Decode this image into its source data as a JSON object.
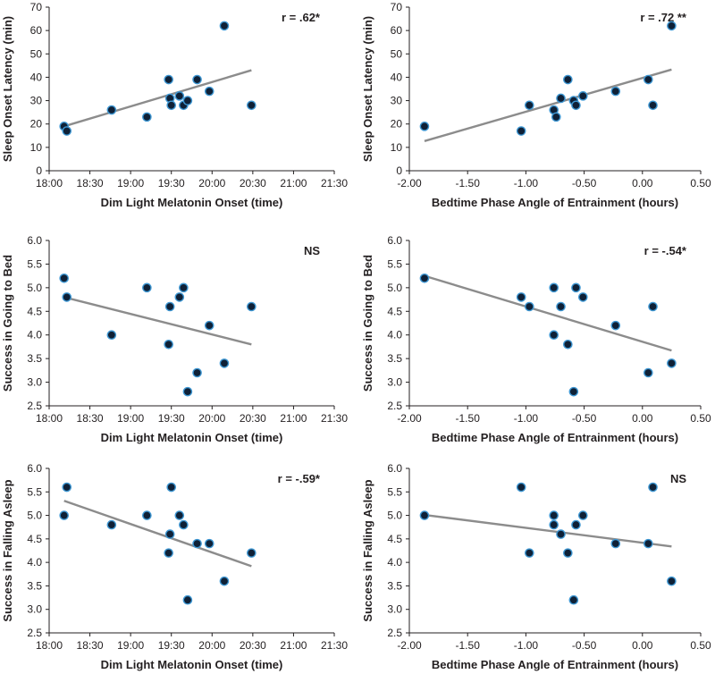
{
  "chart_data": [
    {
      "type": "scatter",
      "id": "p1",
      "xlabel": "Dim Light Melatonin Onset (time)",
      "ylabel": "Sleep Onset Latency (min)",
      "annotation": "r = .62*",
      "x_ticks": [
        "18:00",
        "18:30",
        "19:00",
        "19:30",
        "20:00",
        "20:30",
        "21:00",
        "21:30"
      ],
      "y_ticks": [
        "0",
        "10",
        "20",
        "30",
        "40",
        "50",
        "60",
        "70"
      ],
      "xlim": [
        0,
        210
      ],
      "ylim": [
        0,
        70
      ],
      "x_unit": "minutes after 18:00",
      "points": [
        [
          11,
          19
        ],
        [
          13,
          17
        ],
        [
          46,
          26
        ],
        [
          72,
          23
        ],
        [
          88,
          39
        ],
        [
          89,
          31
        ],
        [
          90,
          28
        ],
        [
          96,
          32
        ],
        [
          99,
          28
        ],
        [
          102,
          30
        ],
        [
          109,
          39
        ],
        [
          118,
          34
        ],
        [
          129,
          62
        ],
        [
          149,
          28
        ]
      ],
      "trendline": [
        [
          11,
          19
        ],
        [
          149,
          43
        ]
      ]
    },
    {
      "type": "scatter",
      "id": "p2",
      "xlabel": "Bedtime Phase Angle of Entrainment (hours)",
      "ylabel": "Sleep Onset Latency (min)",
      "annotation": "r = .72 **",
      "x_ticks": [
        "-2.00",
        "-1.50",
        "-1.00",
        "-0.50",
        "0.00",
        "0.50"
      ],
      "y_ticks": [
        "0",
        "10",
        "20",
        "30",
        "40",
        "50",
        "60",
        "70"
      ],
      "xlim": [
        -2.0,
        0.5
      ],
      "ylim": [
        0,
        70
      ],
      "points": [
        [
          -1.87,
          19
        ],
        [
          -1.04,
          17
        ],
        [
          -0.97,
          28
        ],
        [
          -0.76,
          26
        ],
        [
          -0.74,
          23
        ],
        [
          -0.7,
          31
        ],
        [
          -0.64,
          39
        ],
        [
          -0.59,
          30
        ],
        [
          -0.57,
          28
        ],
        [
          -0.51,
          32
        ],
        [
          -0.23,
          34
        ],
        [
          0.05,
          39
        ],
        [
          0.09,
          28
        ],
        [
          0.25,
          62
        ]
      ],
      "trendline": [
        [
          -1.87,
          12.7
        ],
        [
          0.25,
          43.3
        ]
      ]
    },
    {
      "type": "scatter",
      "id": "p3",
      "xlabel": "Dim Light Melatonin Onset (time)",
      "ylabel": "Success in Going to Bed",
      "annotation": "NS",
      "x_ticks": [
        "18:00",
        "18:30",
        "19:00",
        "19:30",
        "20:00",
        "20:30",
        "21:00",
        "21:30"
      ],
      "y_ticks": [
        "2.5",
        "3.0",
        "3.5",
        "4.0",
        "4.5",
        "5.0",
        "5.5",
        "6.0"
      ],
      "xlim": [
        0,
        210
      ],
      "ylim": [
        2.5,
        6.0
      ],
      "x_unit": "minutes after 18:00",
      "points": [
        [
          11,
          5.2
        ],
        [
          13,
          4.8
        ],
        [
          46,
          4.0
        ],
        [
          72,
          5.0
        ],
        [
          88,
          3.8
        ],
        [
          89,
          4.6
        ],
        [
          96,
          4.8
        ],
        [
          99,
          5.0
        ],
        [
          102,
          2.8
        ],
        [
          109,
          3.2
        ],
        [
          118,
          4.2
        ],
        [
          129,
          3.4
        ],
        [
          149,
          4.6
        ]
      ],
      "trendline": [
        [
          11,
          4.8
        ],
        [
          149,
          3.8
        ]
      ]
    },
    {
      "type": "scatter",
      "id": "p4",
      "xlabel": "Bedtime Phase Angle of Entrainment (hours)",
      "ylabel": "Success in Going to Bed",
      "annotation": "r = -.54*",
      "x_ticks": [
        "-2.00",
        "-1.50",
        "-1.00",
        "-0.50",
        "0.00",
        "0.50"
      ],
      "y_ticks": [
        "2.5",
        "3.0",
        "3.5",
        "4.0",
        "4.5",
        "5.0",
        "5.5",
        "6.0"
      ],
      "xlim": [
        -2.0,
        0.5
      ],
      "ylim": [
        2.5,
        6.0
      ],
      "points": [
        [
          -1.87,
          5.2
        ],
        [
          -1.04,
          4.8
        ],
        [
          -0.97,
          4.6
        ],
        [
          -0.76,
          5.0
        ],
        [
          -0.76,
          4.0
        ],
        [
          -0.7,
          4.6
        ],
        [
          -0.64,
          3.8
        ],
        [
          -0.59,
          2.8
        ],
        [
          -0.57,
          5.0
        ],
        [
          -0.51,
          4.8
        ],
        [
          -0.23,
          4.2
        ],
        [
          0.05,
          3.2
        ],
        [
          0.09,
          4.6
        ],
        [
          0.25,
          3.4
        ]
      ],
      "trendline": [
        [
          -1.87,
          5.25
        ],
        [
          0.25,
          3.67
        ]
      ]
    },
    {
      "type": "scatter",
      "id": "p5",
      "xlabel": "Dim Light Melatonin Onset (time)",
      "ylabel": "Success in Falling Asleep",
      "annotation": "r = -.59*",
      "x_ticks": [
        "18:00",
        "18:30",
        "19:00",
        "19:30",
        "20:00",
        "20:30",
        "21:00",
        "21:30"
      ],
      "y_ticks": [
        "2.5",
        "3.0",
        "3.5",
        "4.0",
        "4.5",
        "5.0",
        "5.5",
        "6.0"
      ],
      "xlim": [
        0,
        210
      ],
      "ylim": [
        2.5,
        6.0
      ],
      "x_unit": "minutes after 18:00",
      "points": [
        [
          11,
          5.0
        ],
        [
          13,
          5.6
        ],
        [
          46,
          4.8
        ],
        [
          72,
          5.0
        ],
        [
          88,
          4.2
        ],
        [
          89,
          4.6
        ],
        [
          90,
          5.6
        ],
        [
          96,
          5.0
        ],
        [
          99,
          4.8
        ],
        [
          102,
          3.2
        ],
        [
          109,
          4.4
        ],
        [
          118,
          4.4
        ],
        [
          129,
          3.6
        ],
        [
          149,
          4.2
        ]
      ],
      "trendline": [
        [
          11,
          5.31
        ],
        [
          149,
          3.92
        ]
      ]
    },
    {
      "type": "scatter",
      "id": "p6",
      "xlabel": "Bedtime Phase Angle of Entrainment (hours)",
      "ylabel": "Success in Falling Asleep",
      "annotation": "NS",
      "x_ticks": [
        "-2.00",
        "-1.50",
        "-1.00",
        "-0.50",
        "0.00",
        "0.50"
      ],
      "y_ticks": [
        "2.5",
        "3.0",
        "3.5",
        "4.0",
        "4.5",
        "5.0",
        "5.5",
        "6.0"
      ],
      "xlim": [
        -2.0,
        0.5
      ],
      "ylim": [
        2.5,
        6.0
      ],
      "points": [
        [
          -1.87,
          5.0
        ],
        [
          -1.04,
          5.6
        ],
        [
          -0.97,
          4.2
        ],
        [
          -0.76,
          4.8
        ],
        [
          -0.76,
          5.0
        ],
        [
          -0.7,
          4.6
        ],
        [
          -0.64,
          4.2
        ],
        [
          -0.59,
          3.2
        ],
        [
          -0.57,
          4.8
        ],
        [
          -0.51,
          5.0
        ],
        [
          -0.23,
          4.4
        ],
        [
          0.05,
          4.4
        ],
        [
          0.09,
          5.6
        ],
        [
          0.25,
          3.6
        ]
      ],
      "trendline": [
        [
          -1.87,
          5.01
        ],
        [
          0.25,
          4.34
        ]
      ]
    }
  ]
}
